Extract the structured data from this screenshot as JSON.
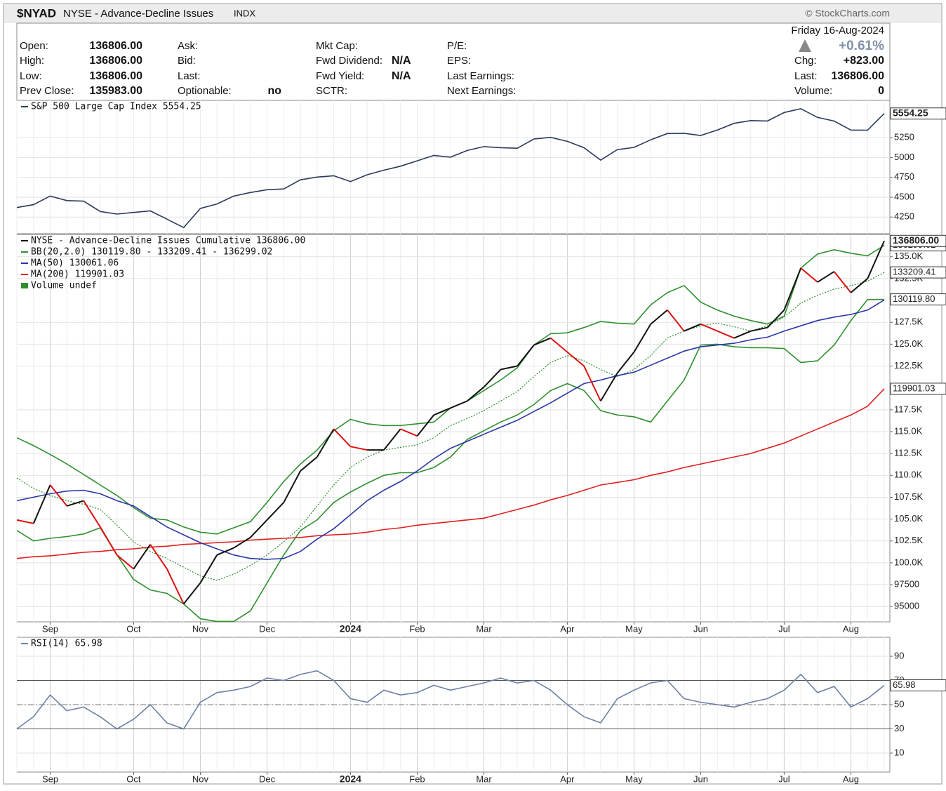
{
  "header": {
    "symbol": "$NYAD",
    "name": "NYSE - Advance-Decline Issues",
    "exchange": "INDX",
    "brand": "© StockCharts.com",
    "date": "Friday  16-Aug-2024",
    "change_pct": "+0.61%",
    "columns": [
      [
        {
          "label": "Open:",
          "value": "136806.00"
        },
        {
          "label": "High:",
          "value": "136806.00"
        },
        {
          "label": "Low:",
          "value": "136806.00"
        },
        {
          "label": "Prev Close:",
          "value": "135983.00"
        }
      ],
      [
        {
          "label": "Ask:"
        },
        {
          "label": "Bid:"
        },
        {
          "label": "Last:"
        },
        {
          "label": "Optionable:",
          "value": "no"
        }
      ],
      [
        {
          "label": "Mkt Cap:"
        },
        {
          "label": "Fwd Dividend:",
          "value": "N/A"
        },
        {
          "label": "Fwd Yield:",
          "value": "N/A"
        },
        {
          "label": "SCTR:"
        }
      ],
      [
        {
          "label": "P/E:"
        },
        {
          "label": "EPS:"
        },
        {
          "label": "Last Earnings:"
        },
        {
          "label": "Next Earnings:"
        }
      ]
    ],
    "summary": [
      {
        "label": "Chg:",
        "value": "+823.00"
      },
      {
        "label": "Last:",
        "value": "136806.00"
      },
      {
        "label": "Volume:",
        "value": "0"
      }
    ]
  },
  "chart_data": [
    {
      "type": "line",
      "ylim": [
        4040,
        5720
      ],
      "yticks": [
        4250,
        4500,
        4750,
        5000,
        5250
      ],
      "grid": true,
      "series": [
        {
          "name": "S&P 500 Large Cap Index 5554.25",
          "color": "#2a3a5c",
          "last_label": "5554.25",
          "values": [
            4370,
            4406,
            4515,
            4457,
            4450,
            4320,
            4288,
            4308,
            4327,
            4224,
            4117,
            4358,
            4415,
            4514,
            4559,
            4594,
            4604,
            4719,
            4754,
            4770,
            4697,
            4783,
            4840,
            4891,
            4959,
            5027,
            5005,
            5089,
            5137,
            5124,
            5117,
            5234,
            5254,
            5204,
            5123,
            4967,
            5100,
            5128,
            5223,
            5303,
            5305,
            5278,
            5347,
            5431,
            5465,
            5460,
            5567,
            5615,
            5505,
            5459,
            5346,
            5344,
            5554.25
          ]
        }
      ]
    },
    {
      "type": "line",
      "ylim": [
        93250,
        137550
      ],
      "grid": true,
      "yticks": [
        95000,
        97500,
        {
          "value": 100000,
          "label": "100.0K"
        },
        {
          "value": 102500,
          "label": "102.5K"
        },
        {
          "value": 105000,
          "label": "105.0K"
        },
        {
          "value": 107500,
          "label": "107.5K"
        },
        {
          "value": 110000,
          "label": "110.0K"
        },
        {
          "value": 112500,
          "label": "112.5K"
        },
        {
          "value": 115000,
          "label": "115.0K"
        },
        {
          "value": 117500,
          "label": "117.5K"
        },
        {
          "value": 122500,
          "label": "122.5K"
        },
        {
          "value": 125000,
          "label": "125.0K"
        },
        {
          "value": 127500,
          "label": "127.5K"
        },
        {
          "value": 132500,
          "label": "132.5K"
        },
        {
          "value": 135000,
          "label": "135.0K"
        }
      ],
      "categories": [
        null,
        null,
        "Sep",
        null,
        null,
        null,
        null,
        "Oct",
        null,
        null,
        null,
        "Nov",
        null,
        null,
        null,
        "Dec",
        null,
        null,
        null,
        null,
        "2024",
        null,
        null,
        null,
        "Feb",
        null,
        null,
        null,
        "Mar",
        null,
        null,
        null,
        null,
        "Apr",
        null,
        null,
        null,
        "May",
        null,
        null,
        null,
        "Jun",
        null,
        null,
        null,
        null,
        "Jul",
        null,
        null,
        null,
        "Aug",
        null,
        null
      ],
      "series": [
        {
          "name": "NYSE - Advance-Decline Issues Cumulative 136806.00",
          "color": "#111111",
          "down_color": "#e01010",
          "last_label": "136806.00",
          "values": [
            104900,
            104500,
            108900,
            106500,
            107100,
            104100,
            100900,
            99300,
            102100,
            99300,
            95300,
            97700,
            100900,
            101700,
            102900,
            104900,
            106900,
            110500,
            112100,
            115300,
            113300,
            112900,
            112900,
            115300,
            114500,
            116900,
            117700,
            118500,
            120100,
            122100,
            122500,
            124900,
            125700,
            124100,
            122500,
            118500,
            121700,
            124100,
            127300,
            128900,
            126500,
            127300,
            126500,
            125700,
            126500,
            126900,
            128900,
            133700,
            132100,
            133300,
            130900,
            132500,
            136806
          ]
        },
        {
          "name": "MA(50) 130061.06",
          "color": "#2b36a8",
          "values": [
            107100,
            107500,
            107900,
            108200,
            108300,
            107900,
            107100,
            106500,
            105300,
            104100,
            103200,
            102300,
            101600,
            100900,
            100500,
            100400,
            100500,
            101300,
            102700,
            103900,
            105500,
            107100,
            108300,
            109300,
            110500,
            111900,
            113100,
            113900,
            114700,
            115500,
            116300,
            117300,
            118300,
            119400,
            120500,
            120900,
            121400,
            121800,
            122600,
            123400,
            124200,
            124700,
            124900,
            125100,
            125500,
            125800,
            126500,
            127100,
            127700,
            128100,
            128400,
            128900,
            130061.06
          ]
        },
        {
          "name": "MA(200) 119901.03",
          "color": "#e02020",
          "last_label": "119901.03",
          "values": [
            100500,
            100700,
            100800,
            101000,
            101200,
            101300,
            101500,
            101600,
            101800,
            101900,
            102100,
            102200,
            102300,
            102400,
            102600,
            102700,
            102800,
            102900,
            103100,
            103200,
            103300,
            103500,
            103800,
            104000,
            104300,
            104500,
            104700,
            104900,
            105100,
            105600,
            106100,
            106600,
            107200,
            107700,
            108300,
            108900,
            109200,
            109500,
            110000,
            110400,
            110900,
            111300,
            111700,
            112100,
            112500,
            113100,
            113700,
            114500,
            115300,
            116100,
            116900,
            117900,
            119901.03
          ]
        }
      ],
      "bollinger": {
        "name": "BB(20,2.0) 130119.80 - 133209.41 - 136299.02",
        "color": "#2f8f2f",
        "lower_label": "130119.80",
        "middle_label": "133209.41",
        "upper_label": "136299.02",
        "upper": [
          114300,
          113400,
          112400,
          111300,
          110100,
          108900,
          107700,
          106300,
          105100,
          104900,
          104100,
          103500,
          103300,
          104000,
          104700,
          106900,
          109300,
          111300,
          112900,
          115100,
          116400,
          115900,
          115700,
          115700,
          115900,
          116100,
          117700,
          118500,
          119700,
          120900,
          122300,
          124900,
          126200,
          126300,
          126900,
          127600,
          127400,
          127300,
          129500,
          130900,
          131700,
          129800,
          128900,
          128200,
          127700,
          127300,
          128200,
          133700,
          135300,
          135800,
          135400,
          135100,
          136299.02
        ],
        "middle": [
          109700,
          108500,
          107700,
          107100,
          106700,
          106100,
          104300,
          102400,
          101300,
          100500,
          99500,
          98500,
          98000,
          98700,
          99700,
          100900,
          102400,
          104100,
          106500,
          108900,
          110900,
          112100,
          112900,
          113200,
          113500,
          114300,
          115700,
          116500,
          117400,
          118500,
          119600,
          121300,
          122900,
          123700,
          123100,
          122100,
          121300,
          122100,
          123700,
          125700,
          126500,
          127100,
          127400,
          127000,
          126500,
          127100,
          128100,
          129700,
          130600,
          131300,
          131700,
          132200,
          133209.41
        ],
        "lower": [
          103700,
          102500,
          102800,
          103000,
          103300,
          104000,
          100900,
          98100,
          96900,
          96500,
          95300,
          93600,
          93300,
          93300,
          94500,
          97700,
          100900,
          103700,
          104900,
          106900,
          108100,
          109100,
          110000,
          110300,
          110300,
          110900,
          112100,
          114100,
          115100,
          116100,
          116900,
          118100,
          119700,
          120500,
          119700,
          117400,
          116900,
          116700,
          116100,
          118500,
          120900,
          124900,
          125000,
          124700,
          124600,
          124600,
          124500,
          122900,
          123100,
          124900,
          127700,
          130100,
          130119.8
        ]
      },
      "volume_label": "Volume undef"
    },
    {
      "type": "line",
      "ylim": [
        -5.7,
        105.7
      ],
      "yticks": [
        10,
        30,
        50,
        70,
        90
      ],
      "levels": [
        30,
        50,
        70
      ],
      "grid": true,
      "categories": [
        null,
        null,
        "Sep",
        null,
        null,
        null,
        null,
        "Oct",
        null,
        null,
        null,
        "Nov",
        null,
        null,
        null,
        "Dec",
        null,
        null,
        null,
        null,
        "2024",
        null,
        null,
        null,
        "Feb",
        null,
        null,
        null,
        "Mar",
        null,
        null,
        null,
        null,
        "Apr",
        null,
        null,
        null,
        "May",
        null,
        null,
        null,
        "Jun",
        null,
        null,
        null,
        null,
        "Jul",
        null,
        null,
        null,
        "Aug",
        null,
        null
      ],
      "series": [
        {
          "name": "RSI(14) 65.98",
          "color": "#6d80a8",
          "last_label": "65.98",
          "values": [
            30,
            40,
            58,
            45,
            48,
            40,
            30,
            38,
            50,
            35,
            30,
            52,
            60,
            62,
            65,
            72,
            70,
            75,
            78,
            70,
            55,
            52,
            62,
            58,
            60,
            66,
            62,
            65,
            68,
            72,
            68,
            70,
            62,
            50,
            40,
            35,
            55,
            62,
            68,
            70,
            55,
            52,
            50,
            48,
            52,
            55,
            62,
            75,
            60,
            65,
            48,
            55,
            65.98
          ]
        }
      ]
    }
  ]
}
